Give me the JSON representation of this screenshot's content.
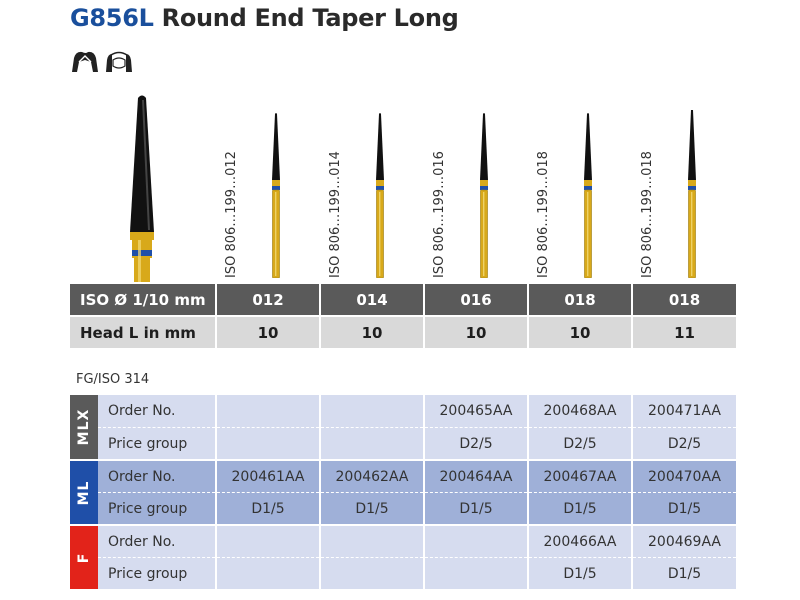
{
  "header": {
    "code": "G856L",
    "name": "Round End Taper Long"
  },
  "colors": {
    "title_code": "#1a4f9c",
    "bur_head": "#111111",
    "bur_shank": "#d8a91a",
    "bur_ring": "#1f4fa8",
    "mlx_tag": "#5a5a5a",
    "ml_tag": "#1f4fa8",
    "f_tag": "#e2231a"
  },
  "icons": [
    "crown-prep-icon",
    "bridge-prep-icon"
  ],
  "burs": [
    {
      "iso_code": "ISO 806…199…012"
    },
    {
      "iso_code": "ISO 806…199…014"
    },
    {
      "iso_code": "ISO 806…199…016"
    },
    {
      "iso_code": "ISO 806…199…018"
    },
    {
      "iso_code": "ISO 806…199…018"
    }
  ],
  "spec_table": {
    "diameter_label": "ISO Ø 1/10 mm",
    "diameters": [
      "012",
      "014",
      "016",
      "018",
      "018"
    ],
    "head_label": "Head L in mm",
    "head_lengths": [
      "10",
      "10",
      "10",
      "10",
      "11"
    ]
  },
  "shank_type": "FG/ISO 314",
  "order_table": {
    "groups": [
      {
        "tag": "MLX",
        "order_label": "Order No.",
        "orders": [
          "",
          "",
          "200465AA",
          "200468AA",
          "200471AA"
        ],
        "price_label": "Price group",
        "prices": [
          "",
          "",
          "D2/5",
          "D2/5",
          "D2/5"
        ]
      },
      {
        "tag": "ML",
        "order_label": "Order No.",
        "orders": [
          "200461AA",
          "200462AA",
          "200464AA",
          "200467AA",
          "200470AA"
        ],
        "price_label": "Price group",
        "prices": [
          "D1/5",
          "D1/5",
          "D1/5",
          "D1/5",
          "D1/5"
        ]
      },
      {
        "tag": "F",
        "order_label": "Order No.",
        "orders": [
          "",
          "",
          "",
          "200466AA",
          "200469AA"
        ],
        "price_label": "Price group",
        "prices": [
          "",
          "",
          "",
          "D1/5",
          "D1/5"
        ]
      }
    ]
  }
}
